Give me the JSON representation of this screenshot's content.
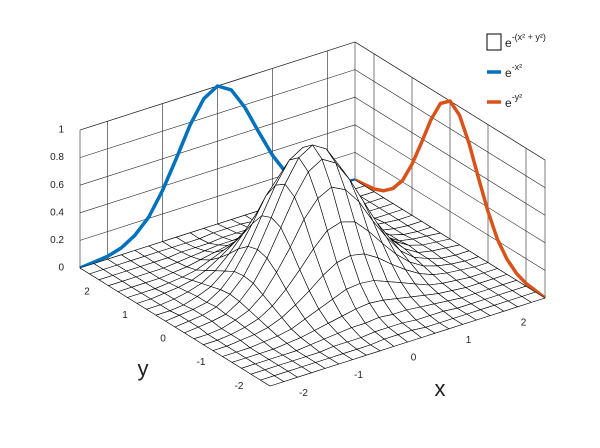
{
  "chart_data": {
    "type": "surface3d",
    "xlabel": "x",
    "ylabel": "y",
    "xlim": [
      -2.5,
      2.5
    ],
    "ylim": [
      -2.5,
      2.5
    ],
    "zlim": [
      0,
      1
    ],
    "xticks": [
      -2,
      -1,
      0,
      1,
      2
    ],
    "yticks": [
      -2,
      -1,
      0,
      1,
      2
    ],
    "zticks": [
      0,
      0.2,
      0.4,
      0.6,
      0.8,
      1
    ],
    "grid": true,
    "legend": "northeast",
    "x": [
      -2.5,
      -2.25,
      -2,
      -1.75,
      -1.5,
      -1.25,
      -1,
      -0.75,
      -0.5,
      -0.25,
      0,
      0.25,
      0.5,
      0.75,
      1,
      1.25,
      1.5,
      1.75,
      2,
      2.25,
      2.5
    ],
    "y": [
      -2.5,
      -2.25,
      -2,
      -1.75,
      -1.5,
      -1.25,
      -1,
      -0.75,
      -0.5,
      -0.25,
      0,
      0.25,
      0.5,
      0.75,
      1,
      1.25,
      1.5,
      1.75,
      2,
      2.25,
      2.5
    ],
    "surface": {
      "name": "e",
      "exponent": "-(x² + y²)",
      "color": "#ffffff",
      "edgecolor": "#000000",
      "z": [
        [
          0,
          0,
          0,
          0,
          0,
          0,
          0,
          0,
          0,
          0,
          0,
          0,
          0,
          0,
          0,
          0,
          0,
          0,
          0,
          0,
          0
        ],
        [
          0,
          0,
          0,
          0,
          0,
          0,
          0,
          0,
          0,
          0.01,
          0.01,
          0.01,
          0,
          0,
          0,
          0,
          0,
          0,
          0,
          0,
          0
        ],
        [
          0,
          0,
          0,
          0,
          0,
          0,
          0.01,
          0.01,
          0.01,
          0.02,
          0.02,
          0.02,
          0.01,
          0.01,
          0.01,
          0,
          0,
          0,
          0,
          0,
          0
        ],
        [
          0,
          0,
          0,
          0,
          0,
          0.01,
          0.02,
          0.03,
          0.04,
          0.04,
          0.05,
          0.04,
          0.04,
          0.03,
          0.02,
          0.01,
          0,
          0,
          0,
          0,
          0
        ],
        [
          0,
          0,
          0,
          0,
          0.01,
          0.02,
          0.04,
          0.06,
          0.08,
          0.1,
          0.11,
          0.1,
          0.08,
          0.06,
          0.04,
          0.02,
          0.01,
          0,
          0,
          0,
          0
        ],
        [
          0,
          0,
          0,
          0.01,
          0.02,
          0.04,
          0.08,
          0.12,
          0.16,
          0.2,
          0.21,
          0.2,
          0.16,
          0.12,
          0.08,
          0.04,
          0.02,
          0.01,
          0,
          0,
          0
        ],
        [
          0,
          0,
          0.01,
          0.02,
          0.04,
          0.08,
          0.14,
          0.21,
          0.29,
          0.35,
          0.37,
          0.35,
          0.29,
          0.21,
          0.14,
          0.08,
          0.04,
          0.02,
          0.01,
          0,
          0
        ],
        [
          0,
          0,
          0.01,
          0.03,
          0.06,
          0.12,
          0.21,
          0.32,
          0.44,
          0.54,
          0.57,
          0.54,
          0.44,
          0.32,
          0.21,
          0.12,
          0.06,
          0.03,
          0.01,
          0,
          0
        ],
        [
          0,
          0,
          0.01,
          0.04,
          0.08,
          0.16,
          0.29,
          0.44,
          0.61,
          0.73,
          0.78,
          0.73,
          0.61,
          0.44,
          0.29,
          0.16,
          0.08,
          0.04,
          0.01,
          0,
          0
        ],
        [
          0,
          0.01,
          0.02,
          0.04,
          0.1,
          0.2,
          0.35,
          0.54,
          0.73,
          0.88,
          0.94,
          0.88,
          0.73,
          0.54,
          0.35,
          0.2,
          0.1,
          0.04,
          0.02,
          0.01,
          0
        ],
        [
          0,
          0.01,
          0.02,
          0.05,
          0.11,
          0.21,
          0.37,
          0.57,
          0.78,
          0.94,
          1,
          0.94,
          0.78,
          0.57,
          0.37,
          0.21,
          0.11,
          0.05,
          0.02,
          0.01,
          0
        ],
        [
          0,
          0.01,
          0.02,
          0.04,
          0.1,
          0.2,
          0.35,
          0.54,
          0.73,
          0.88,
          0.94,
          0.88,
          0.73,
          0.54,
          0.35,
          0.2,
          0.1,
          0.04,
          0.02,
          0.01,
          0
        ],
        [
          0,
          0,
          0.01,
          0.04,
          0.08,
          0.16,
          0.29,
          0.44,
          0.61,
          0.73,
          0.78,
          0.73,
          0.61,
          0.44,
          0.29,
          0.16,
          0.08,
          0.04,
          0.01,
          0,
          0
        ],
        [
          0,
          0,
          0.01,
          0.03,
          0.06,
          0.12,
          0.21,
          0.32,
          0.44,
          0.54,
          0.57,
          0.54,
          0.44,
          0.32,
          0.21,
          0.12,
          0.06,
          0.03,
          0.01,
          0,
          0
        ],
        [
          0,
          0,
          0.01,
          0.02,
          0.04,
          0.08,
          0.14,
          0.21,
          0.29,
          0.35,
          0.37,
          0.35,
          0.29,
          0.21,
          0.14,
          0.08,
          0.04,
          0.02,
          0.01,
          0,
          0
        ],
        [
          0,
          0,
          0,
          0.01,
          0.02,
          0.04,
          0.08,
          0.12,
          0.16,
          0.2,
          0.21,
          0.2,
          0.16,
          0.12,
          0.08,
          0.04,
          0.02,
          0.01,
          0,
          0,
          0
        ],
        [
          0,
          0,
          0,
          0,
          0.01,
          0.02,
          0.04,
          0.06,
          0.08,
          0.1,
          0.11,
          0.1,
          0.08,
          0.06,
          0.04,
          0.02,
          0.01,
          0,
          0,
          0,
          0
        ],
        [
          0,
          0,
          0,
          0,
          0,
          0.01,
          0.02,
          0.03,
          0.04,
          0.04,
          0.05,
          0.04,
          0.04,
          0.03,
          0.02,
          0.01,
          0,
          0,
          0,
          0,
          0
        ],
        [
          0,
          0,
          0,
          0,
          0,
          0,
          0.01,
          0.01,
          0.01,
          0.02,
          0.02,
          0.02,
          0.01,
          0.01,
          0.01,
          0,
          0,
          0,
          0,
          0,
          0
        ],
        [
          0,
          0,
          0,
          0,
          0,
          0,
          0,
          0,
          0,
          0.01,
          0.01,
          0.01,
          0,
          0,
          0,
          0,
          0,
          0,
          0,
          0,
          0
        ],
        [
          0,
          0,
          0,
          0,
          0,
          0,
          0,
          0,
          0,
          0,
          0,
          0,
          0,
          0,
          0,
          0,
          0,
          0,
          0,
          0,
          0
        ]
      ]
    },
    "series": [
      {
        "name": "e",
        "exponent": "-x²",
        "color": "#0072bd",
        "along": "x",
        "values": [
          0,
          0.01,
          0.02,
          0.05,
          0.11,
          0.21,
          0.37,
          0.57,
          0.78,
          0.94,
          1,
          0.94,
          0.78,
          0.57,
          0.37,
          0.21,
          0.11,
          0.05,
          0.02,
          0.01,
          0
        ]
      },
      {
        "name": "e",
        "exponent": "-y²",
        "color": "#d95319",
        "along": "y",
        "values": [
          0,
          0.01,
          0.02,
          0.05,
          0.11,
          0.21,
          0.37,
          0.57,
          0.78,
          0.94,
          1,
          0.94,
          0.78,
          0.57,
          0.37,
          0.21,
          0.11,
          0.05,
          0.02,
          0.01,
          0
        ]
      }
    ]
  }
}
